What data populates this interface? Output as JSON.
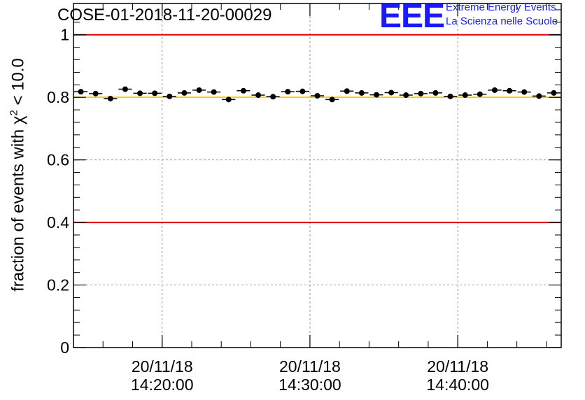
{
  "title": "COSE-01-2018-11-20-00029",
  "logo": {
    "mark": "EEE",
    "line1": "Extreme Energy Events",
    "line2": "La Scienza nelle Scuole",
    "color": "#1a1aff"
  },
  "chart_data": {
    "type": "scatter",
    "title": "COSE-01-2018-11-20-00029",
    "ylabel": {
      "prefix": "fraction of events with ",
      "symbol": "χ",
      "exponent": "2",
      "suffix": " < 10.0"
    },
    "xlabel": "",
    "ylim": [
      0,
      1.1
    ],
    "yticks": [
      0,
      0.2,
      0.4,
      0.6,
      0.8,
      1
    ],
    "ytick_labels": [
      "0",
      "0.2",
      "0.4",
      "0.6",
      "0.8",
      "1"
    ],
    "xlim_minutes": [
      14.0,
      47.0
    ],
    "xticks": [
      {
        "minute": 20,
        "date": "20/11/18",
        "time": "14:20:00"
      },
      {
        "minute": 30,
        "date": "20/11/18",
        "time": "14:30:00"
      },
      {
        "minute": 40,
        "date": "20/11/18",
        "time": "14:40:00"
      }
    ],
    "grid": true,
    "reference_lines": [
      {
        "y": 1.0,
        "color": "#dd0000"
      },
      {
        "y": 0.4,
        "color": "#dd0000"
      },
      {
        "y": 0.8,
        "color": "#ffcc00"
      }
    ],
    "series": [
      {
        "name": "fraction",
        "x_minutes": [
          14.5,
          15.5,
          16.5,
          17.5,
          18.5,
          19.5,
          20.5,
          21.5,
          22.5,
          23.5,
          24.5,
          25.5,
          26.5,
          27.5,
          28.5,
          29.5,
          30.5,
          31.5,
          32.5,
          33.5,
          34.5,
          35.5,
          36.5,
          37.5,
          38.5,
          39.5,
          40.5,
          41.5,
          42.5,
          43.5,
          44.5,
          45.5,
          46.5
        ],
        "values": [
          0.818,
          0.812,
          0.796,
          0.826,
          0.813,
          0.813,
          0.803,
          0.814,
          0.823,
          0.817,
          0.793,
          0.821,
          0.807,
          0.802,
          0.818,
          0.819,
          0.805,
          0.793,
          0.82,
          0.814,
          0.808,
          0.815,
          0.807,
          0.812,
          0.814,
          0.803,
          0.807,
          0.81,
          0.823,
          0.821,
          0.817,
          0.804,
          0.814
        ]
      }
    ]
  }
}
